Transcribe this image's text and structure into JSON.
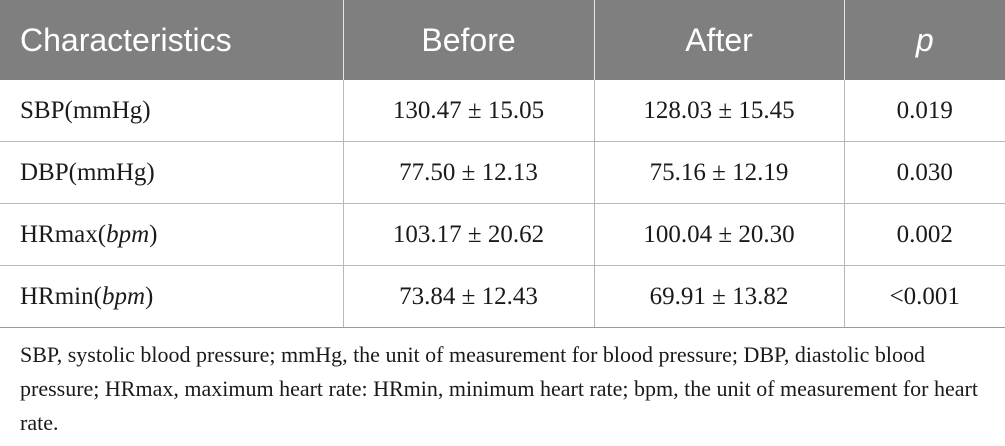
{
  "table": {
    "headers": [
      "Characteristics",
      "Before",
      "After",
      "p"
    ],
    "rows": [
      {
        "name": "SBP",
        "unit": "mmHg",
        "unit_italic": false,
        "before": "130.47 ± 15.05",
        "after": "128.03 ± 15.45",
        "p": "0.019"
      },
      {
        "name": "DBP",
        "unit": "mmHg",
        "unit_italic": false,
        "before": "77.50 ± 12.13",
        "after": "75.16 ± 12.19",
        "p": "0.030"
      },
      {
        "name": "HRmax",
        "unit": "bpm",
        "unit_italic": true,
        "before": "103.17 ± 20.62",
        "after": "100.04 ± 20.30",
        "p": "0.002"
      },
      {
        "name": "HRmin",
        "unit": "bpm",
        "unit_italic": true,
        "before": "73.84 ± 12.43",
        "after": "69.91 ± 13.82",
        "p": "<0.001"
      }
    ]
  },
  "footnote": "SBP, systolic blood pressure; mmHg, the unit of measurement for blood pressure; DBP, diastolic blood pressure; HRmax, maximum heart rate: HRmin, minimum heart rate; bpm, the unit of measurement for heart rate."
}
